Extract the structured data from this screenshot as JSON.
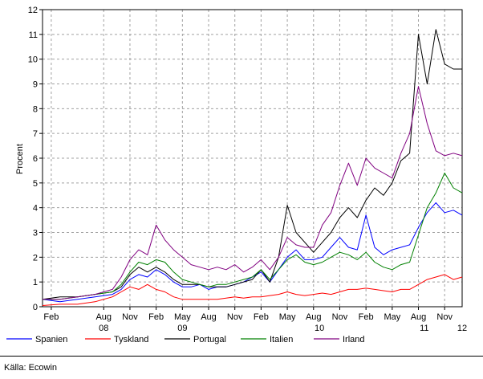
{
  "chart_data": {
    "type": "line",
    "title": "",
    "xlabel": "",
    "ylabel": "Procent",
    "ylim": [
      0,
      12
    ],
    "y_ticks": [
      "0",
      "1",
      "2",
      "3",
      "4",
      "5",
      "6",
      "7",
      "8",
      "9",
      "10",
      "11",
      "12"
    ],
    "grid": true,
    "legend_position": "bottom",
    "month_ticks": [
      "Feb",
      "Aug",
      "Nov",
      "Feb",
      "May",
      "Aug",
      "Nov",
      "Feb",
      "May",
      "Aug",
      "Nov",
      "Feb",
      "May",
      "Aug",
      "Nov"
    ],
    "year_ticks": [
      "08",
      "09",
      "10",
      "11",
      "12"
    ],
    "x_range": [
      "2008-01",
      "2012-01"
    ],
    "series": [
      {
        "name": "Spanien",
        "color": "#0000ff",
        "x": [
          "2008-01",
          "2008-03",
          "2008-05",
          "2008-07",
          "2008-09",
          "2008-10",
          "2008-11",
          "2008-12",
          "2009-01",
          "2009-02",
          "2009-03",
          "2009-04",
          "2009-05",
          "2009-06",
          "2009-07",
          "2009-08",
          "2009-09",
          "2009-10",
          "2009-11",
          "2009-12",
          "2010-01",
          "2010-02",
          "2010-03",
          "2010-04",
          "2010-05",
          "2010-06",
          "2010-07",
          "2010-08",
          "2010-09",
          "2010-10",
          "2010-11",
          "2010-12",
          "2011-01",
          "2011-02",
          "2011-03",
          "2011-04",
          "2011-05",
          "2011-06",
          "2011-07",
          "2011-08",
          "2011-09",
          "2011-10",
          "2011-11",
          "2011-12",
          "2012-01"
        ],
        "values": [
          0.3,
          0.2,
          0.3,
          0.4,
          0.5,
          0.7,
          1.1,
          1.3,
          1.2,
          1.5,
          1.3,
          1.0,
          0.8,
          0.8,
          0.9,
          0.7,
          0.8,
          0.8,
          0.9,
          1.0,
          1.2,
          1.4,
          1.0,
          1.5,
          2.0,
          2.3,
          1.9,
          1.9,
          2.0,
          2.4,
          2.8,
          2.4,
          2.3,
          3.7,
          2.4,
          2.1,
          2.3,
          2.4,
          2.5,
          3.2,
          3.8,
          4.2,
          3.8,
          3.9,
          3.7
        ]
      },
      {
        "name": "Tyskland",
        "color": "#ff0000",
        "x": [
          "2008-01",
          "2008-03",
          "2008-05",
          "2008-07",
          "2008-09",
          "2008-10",
          "2008-11",
          "2008-12",
          "2009-01",
          "2009-02",
          "2009-03",
          "2009-04",
          "2009-05",
          "2009-06",
          "2009-07",
          "2009-08",
          "2009-09",
          "2009-10",
          "2009-11",
          "2009-12",
          "2010-01",
          "2010-02",
          "2010-03",
          "2010-04",
          "2010-05",
          "2010-06",
          "2010-07",
          "2010-08",
          "2010-09",
          "2010-10",
          "2010-11",
          "2010-12",
          "2011-01",
          "2011-02",
          "2011-03",
          "2011-04",
          "2011-05",
          "2011-06",
          "2011-07",
          "2011-08",
          "2011-09",
          "2011-10",
          "2011-11",
          "2011-12",
          "2012-01"
        ],
        "values": [
          0.05,
          0.1,
          0.1,
          0.2,
          0.4,
          0.6,
          0.8,
          0.7,
          0.9,
          0.7,
          0.6,
          0.4,
          0.3,
          0.3,
          0.3,
          0.3,
          0.3,
          0.35,
          0.4,
          0.35,
          0.4,
          0.4,
          0.45,
          0.5,
          0.6,
          0.5,
          0.45,
          0.5,
          0.55,
          0.5,
          0.6,
          0.7,
          0.7,
          0.75,
          0.7,
          0.65,
          0.6,
          0.7,
          0.7,
          0.9,
          1.1,
          1.2,
          1.3,
          1.1,
          1.2
        ]
      },
      {
        "name": "Portugal",
        "color": "#000000",
        "x": [
          "2008-01",
          "2008-03",
          "2008-05",
          "2008-07",
          "2008-09",
          "2008-10",
          "2008-11",
          "2008-12",
          "2009-01",
          "2009-02",
          "2009-03",
          "2009-04",
          "2009-05",
          "2009-06",
          "2009-07",
          "2009-08",
          "2009-09",
          "2009-10",
          "2009-11",
          "2009-12",
          "2010-01",
          "2010-02",
          "2010-03",
          "2010-04",
          "2010-05",
          "2010-06",
          "2010-07",
          "2010-08",
          "2010-09",
          "2010-10",
          "2010-11",
          "2010-12",
          "2011-01",
          "2011-02",
          "2011-03",
          "2011-04",
          "2011-05",
          "2011-06",
          "2011-07",
          "2011-08",
          "2011-09",
          "2011-10",
          "2011-11",
          "2011-12",
          "2012-01"
        ],
        "values": [
          0.3,
          0.4,
          0.4,
          0.5,
          0.6,
          0.8,
          1.3,
          1.6,
          1.4,
          1.6,
          1.4,
          1.1,
          0.9,
          0.9,
          0.9,
          0.8,
          0.8,
          0.8,
          0.9,
          1.0,
          1.1,
          1.5,
          1.0,
          2.0,
          4.1,
          3.0,
          2.6,
          2.2,
          2.6,
          3.0,
          3.6,
          4.0,
          3.6,
          4.3,
          4.8,
          4.5,
          5.0,
          5.9,
          6.2,
          11.0,
          9.0,
          11.2,
          9.8,
          9.6,
          9.6
        ]
      },
      {
        "name": "Italien",
        "color": "#008000",
        "x": [
          "2008-01",
          "2008-03",
          "2008-05",
          "2008-07",
          "2008-09",
          "2008-10",
          "2008-11",
          "2008-12",
          "2009-01",
          "2009-02",
          "2009-03",
          "2009-04",
          "2009-05",
          "2009-06",
          "2009-07",
          "2009-08",
          "2009-09",
          "2009-10",
          "2009-11",
          "2009-12",
          "2010-01",
          "2010-02",
          "2010-03",
          "2010-04",
          "2010-05",
          "2010-06",
          "2010-07",
          "2010-08",
          "2010-09",
          "2010-10",
          "2010-11",
          "2010-12",
          "2011-01",
          "2011-02",
          "2011-03",
          "2011-04",
          "2011-05",
          "2011-06",
          "2011-07",
          "2011-08",
          "2011-09",
          "2011-10",
          "2011-11",
          "2011-12",
          "2012-01"
        ],
        "values": [
          0.3,
          0.3,
          0.4,
          0.5,
          0.6,
          0.9,
          1.4,
          1.8,
          1.7,
          1.9,
          1.8,
          1.4,
          1.1,
          1.0,
          0.9,
          0.8,
          0.9,
          0.9,
          1.0,
          1.1,
          1.2,
          1.5,
          1.1,
          1.5,
          1.9,
          2.1,
          1.8,
          1.7,
          1.8,
          2.0,
          2.2,
          2.1,
          1.9,
          2.2,
          1.8,
          1.6,
          1.5,
          1.7,
          1.8,
          2.9,
          4.0,
          4.6,
          5.4,
          4.8,
          4.6
        ]
      },
      {
        "name": "Irland",
        "color": "#800080",
        "x": [
          "2008-01",
          "2008-03",
          "2008-05",
          "2008-07",
          "2008-09",
          "2008-10",
          "2008-11",
          "2008-12",
          "2009-01",
          "2009-02",
          "2009-03",
          "2009-04",
          "2009-05",
          "2009-06",
          "2009-07",
          "2009-08",
          "2009-09",
          "2009-10",
          "2009-11",
          "2009-12",
          "2010-01",
          "2010-02",
          "2010-03",
          "2010-04",
          "2010-05",
          "2010-06",
          "2010-07",
          "2010-08",
          "2010-09",
          "2010-10",
          "2010-11",
          "2010-12",
          "2011-01",
          "2011-02",
          "2011-03",
          "2011-04",
          "2011-05",
          "2011-06",
          "2011-07",
          "2011-08",
          "2011-09",
          "2011-10",
          "2011-11",
          "2011-12",
          "2012-01"
        ],
        "values": [
          0.3,
          0.3,
          0.4,
          0.5,
          0.7,
          1.2,
          1.9,
          2.3,
          2.1,
          3.3,
          2.7,
          2.3,
          2.0,
          1.7,
          1.6,
          1.5,
          1.6,
          1.5,
          1.7,
          1.4,
          1.6,
          1.9,
          1.5,
          2.0,
          2.8,
          2.5,
          2.4,
          2.4,
          3.3,
          3.8,
          4.9,
          5.8,
          4.9,
          6.0,
          5.6,
          5.4,
          5.2,
          6.2,
          7.0,
          8.9,
          7.4,
          6.3,
          6.1,
          6.2,
          6.1
        ]
      }
    ]
  },
  "source_text": "Källa: Ecowin"
}
